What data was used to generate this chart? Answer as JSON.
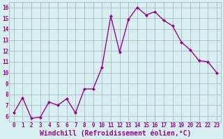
{
  "x": [
    0,
    1,
    2,
    3,
    4,
    5,
    6,
    7,
    8,
    9,
    10,
    11,
    12,
    13,
    14,
    15,
    16,
    17,
    18,
    19,
    20,
    21,
    22,
    23
  ],
  "y": [
    6.3,
    7.7,
    5.8,
    5.9,
    7.3,
    7.0,
    7.6,
    6.3,
    8.5,
    8.5,
    10.5,
    15.2,
    11.9,
    14.9,
    16.0,
    15.3,
    15.6,
    14.8,
    14.3,
    12.8,
    12.1,
    11.1,
    11.0,
    10.0
  ],
  "line_color": "#990099",
  "marker": "D",
  "marker_size": 2,
  "bg_color": "#d6f0f0",
  "grid_color": "#aaaacc",
  "xlabel": "Windchill (Refroidissement éolien,°C)",
  "xlabel_fontsize": 7.0,
  "xlabel_color": "#990099",
  "ylabel_ticks": [
    6,
    7,
    8,
    9,
    10,
    11,
    12,
    13,
    14,
    15,
    16
  ],
  "xlim": [
    -0.5,
    23.5
  ],
  "ylim": [
    5.5,
    16.5
  ],
  "xtick_labels": [
    "0",
    "1",
    "2",
    "3",
    "4",
    "5",
    "6",
    "7",
    "8",
    "9",
    "10",
    "11",
    "12",
    "13",
    "14",
    "15",
    "16",
    "17",
    "18",
    "19",
    "20",
    "21",
    "22",
    "23"
  ],
  "tick_fontsize": 5.5,
  "tick_color": "#990099",
  "linewidth": 1.0
}
